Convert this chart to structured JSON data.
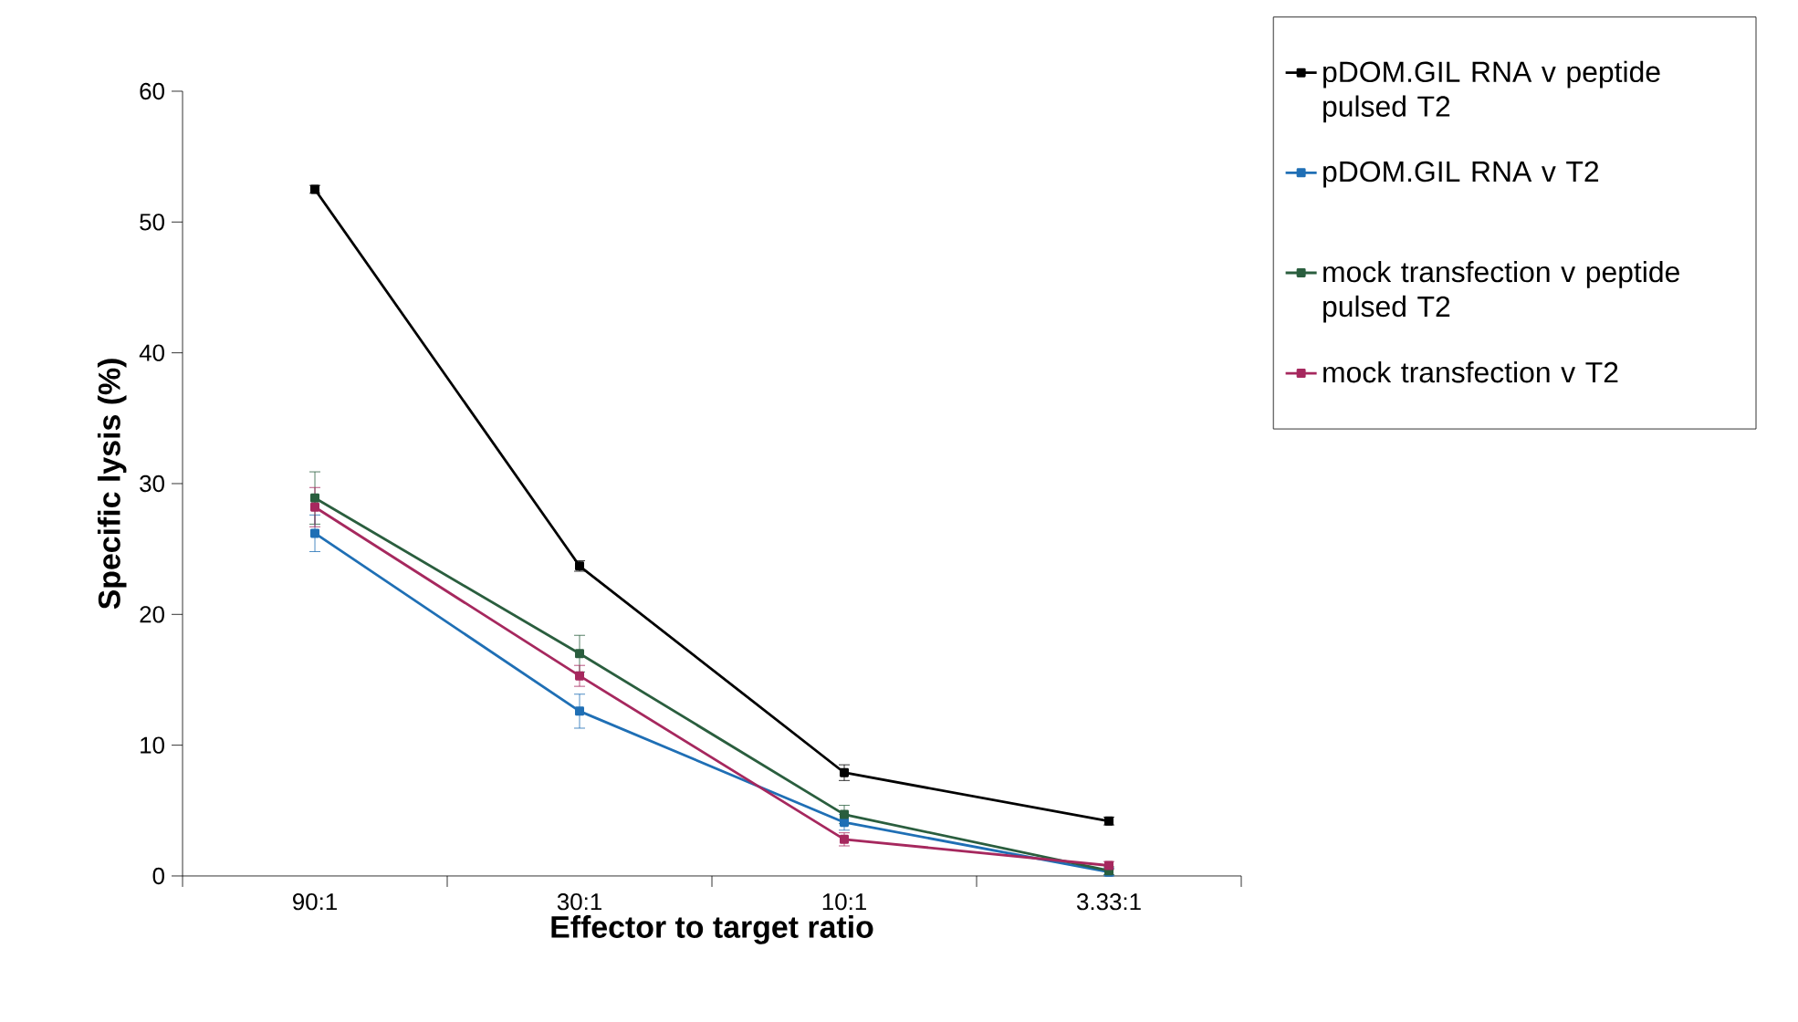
{
  "chart_data": {
    "type": "line",
    "xlabel": "Effector to target ratio",
    "ylabel": "Specific lysis (%)",
    "categories": [
      "90:1",
      "30:1",
      "10:1",
      "3.33:1"
    ],
    "ylim": [
      0,
      60
    ],
    "yticks": [
      0,
      10,
      20,
      30,
      40,
      50,
      60
    ],
    "grid": false,
    "legend": "right",
    "marker": "square",
    "line_style": "solid",
    "series": [
      {
        "name": "pDOM.GIL RNA v peptide pulsed T2",
        "color": "#000000",
        "values": [
          52.5,
          23.7,
          7.9,
          4.2
        ],
        "errors": [
          0.3,
          0.4,
          0.6,
          0.3
        ]
      },
      {
        "name": "pDOM.GIL RNA v T2",
        "color": "#1f6fb5",
        "values": [
          26.2,
          12.6,
          4.1,
          0.3
        ],
        "errors": [
          1.4,
          1.3,
          0.6,
          0.3
        ]
      },
      {
        "name": "mock transfection v peptide pulsed T2",
        "color": "#2a5e3e",
        "values": [
          28.9,
          17.0,
          4.7,
          0.4
        ],
        "errors": [
          2.0,
          1.4,
          0.7,
          0.3
        ]
      },
      {
        "name": "mock transfection v T2",
        "color": "#a6285e",
        "values": [
          28.2,
          15.3,
          2.8,
          0.8
        ],
        "errors": [
          1.5,
          0.8,
          0.5,
          0.3
        ]
      }
    ]
  }
}
